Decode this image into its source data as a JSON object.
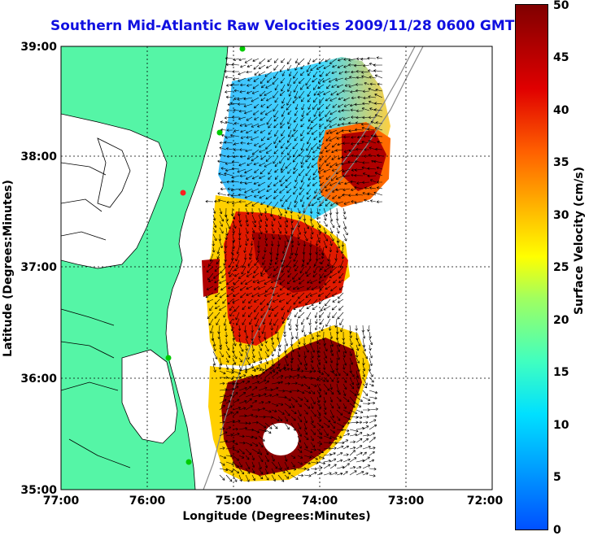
{
  "title": "Southern Mid-Atlantic Raw Velocities 2009/11/28 0600 GMT",
  "x_axis": {
    "label": "Longitude (Degrees:Minutes)",
    "ticks": [
      "77:00",
      "76:00",
      "75:00",
      "74:00",
      "73:00",
      "72:00"
    ]
  },
  "y_axis": {
    "label": "Latitude (Degrees:Minutes)",
    "ticks": [
      "39:00",
      "38:00",
      "37:00",
      "36:00",
      "35:00"
    ]
  },
  "colorbar": {
    "label": "Surface Velocity (cm/s)",
    "ticks": [
      "50",
      "45",
      "40",
      "35",
      "30",
      "25",
      "20",
      "15",
      "10",
      "5",
      "0"
    ],
    "range": [
      0,
      50
    ]
  },
  "colors": {
    "land": "#55f5a6",
    "title": "#1010e0"
  }
}
